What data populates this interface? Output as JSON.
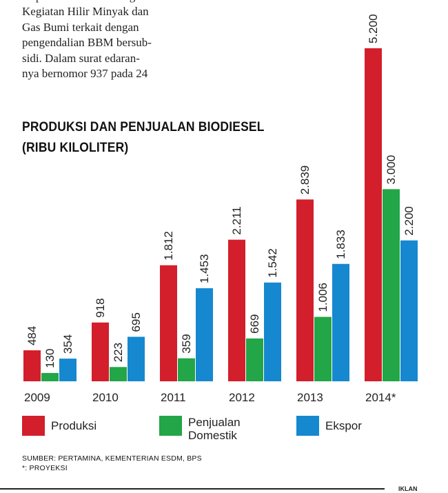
{
  "article": {
    "lines": [
      "Kegiatan Hilir Minyak dan",
      "Gas Bumi terkait dengan",
      "pengendalian BBM bersub-",
      "sidi. Dalam surat edaran-",
      "nya bernomor 937 pada 24"
    ]
  },
  "chart_data": {
    "type": "bar",
    "title": "PRODUKSI DAN PENJUALAN BIODIESEL",
    "subtitle": "(RIBU KILOLITER)",
    "categories": [
      "2009",
      "2010",
      "2011",
      "2012",
      "2013",
      "2014*"
    ],
    "series": [
      {
        "name": "Produksi",
        "color": "#d21f2b",
        "values": [
          484,
          918,
          1812,
          2211,
          2839,
          5200
        ],
        "labels": [
          "484",
          "918",
          "1.812",
          "2.211",
          "2.839",
          "5.200"
        ]
      },
      {
        "name": "Penjualan Domestik",
        "color": "#22a647",
        "values": [
          130,
          223,
          359,
          669,
          1006,
          3000
        ],
        "labels": [
          "130",
          "223",
          "359",
          "669",
          "1.006",
          "3.000"
        ]
      },
      {
        "name": "Ekspor",
        "color": "#1588cf",
        "values": [
          354,
          695,
          1453,
          1542,
          1833,
          2200
        ],
        "labels": [
          "354",
          "695",
          "1.453",
          "1.542",
          "1.833",
          "2.200"
        ]
      }
    ],
    "ylim": [
      0,
      5200
    ],
    "grid": false,
    "legend_position": "bottom",
    "xlabel": "",
    "ylabel": ""
  },
  "legend": {
    "produksi": "Produksi",
    "domestik_line1": "Penjualan",
    "domestik_line2": "Domestik",
    "ekspor": "Ekspor"
  },
  "source": {
    "line1": "SUMBER: PERTAMINA, KEMENTERIAN ESDM, BPS",
    "line2": "*: PROYEKSI"
  },
  "corner_tag": "IKLAN"
}
